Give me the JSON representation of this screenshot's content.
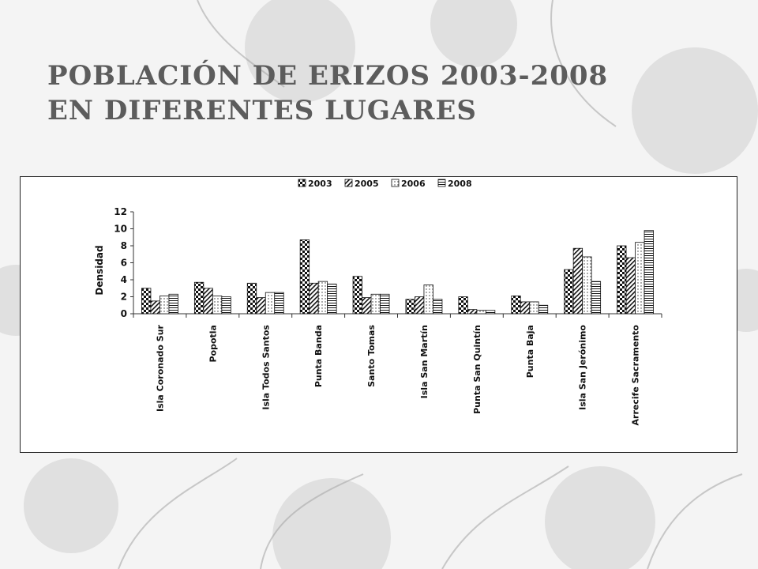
{
  "slide": {
    "title_line1": "POBLACIÓN DE ERIZOS 2003-2008",
    "title_line2": "EN DIFERENTES LUGARES"
  },
  "chart_data": {
    "type": "bar",
    "title": "",
    "xlabel": "",
    "ylabel": "Densidad",
    "ylim": [
      0,
      12
    ],
    "yticks": [
      0,
      2,
      4,
      6,
      8,
      10,
      12
    ],
    "grid": false,
    "legend_position": "top",
    "categories": [
      "Isla Coronado Sur",
      "Popotla",
      "Isla Todos Santos",
      "Punta Banda",
      "Santo Tomas",
      "Isla San Martín",
      "Punta San Quintín",
      "Punta Baja",
      "Isla San Jerónimo",
      "Arrecife Sacramento"
    ],
    "series": [
      {
        "name": "2003",
        "pattern": "checker",
        "values": [
          3.0,
          3.7,
          3.6,
          8.7,
          4.4,
          1.7,
          2.0,
          2.1,
          5.2,
          8.0
        ]
      },
      {
        "name": "2005",
        "pattern": "diagonal",
        "values": [
          1.5,
          3.0,
          1.9,
          3.6,
          1.9,
          2.0,
          0.5,
          1.4,
          7.7,
          6.6
        ]
      },
      {
        "name": "2006",
        "pattern": "dots",
        "values": [
          2.1,
          2.1,
          2.5,
          3.8,
          2.3,
          3.4,
          0.4,
          1.4,
          6.7,
          8.4
        ]
      },
      {
        "name": "2008",
        "pattern": "horizontal",
        "values": [
          2.3,
          2.0,
          2.5,
          3.5,
          2.3,
          1.7,
          0.4,
          1.0,
          3.8,
          9.8
        ]
      }
    ]
  }
}
